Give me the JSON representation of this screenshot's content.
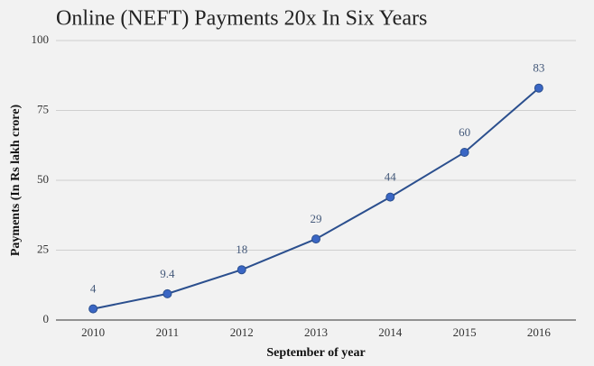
{
  "chart_data": {
    "type": "line",
    "title": "Online (NEFT) Payments 20x In Six Years",
    "x_label": "September of year",
    "y_label": "Payments (In Rs lakh crore)",
    "categories": [
      "2010",
      "2011",
      "2012",
      "2013",
      "2014",
      "2015",
      "2016"
    ],
    "series": [
      {
        "name": "Payments",
        "color": "#2b4f8e",
        "values": [
          4,
          9.4,
          18,
          29,
          44,
          60,
          83
        ]
      }
    ],
    "ylim": [
      0,
      100
    ],
    "yticks": [
      0,
      25,
      50,
      75,
      100
    ],
    "grid": true
  }
}
